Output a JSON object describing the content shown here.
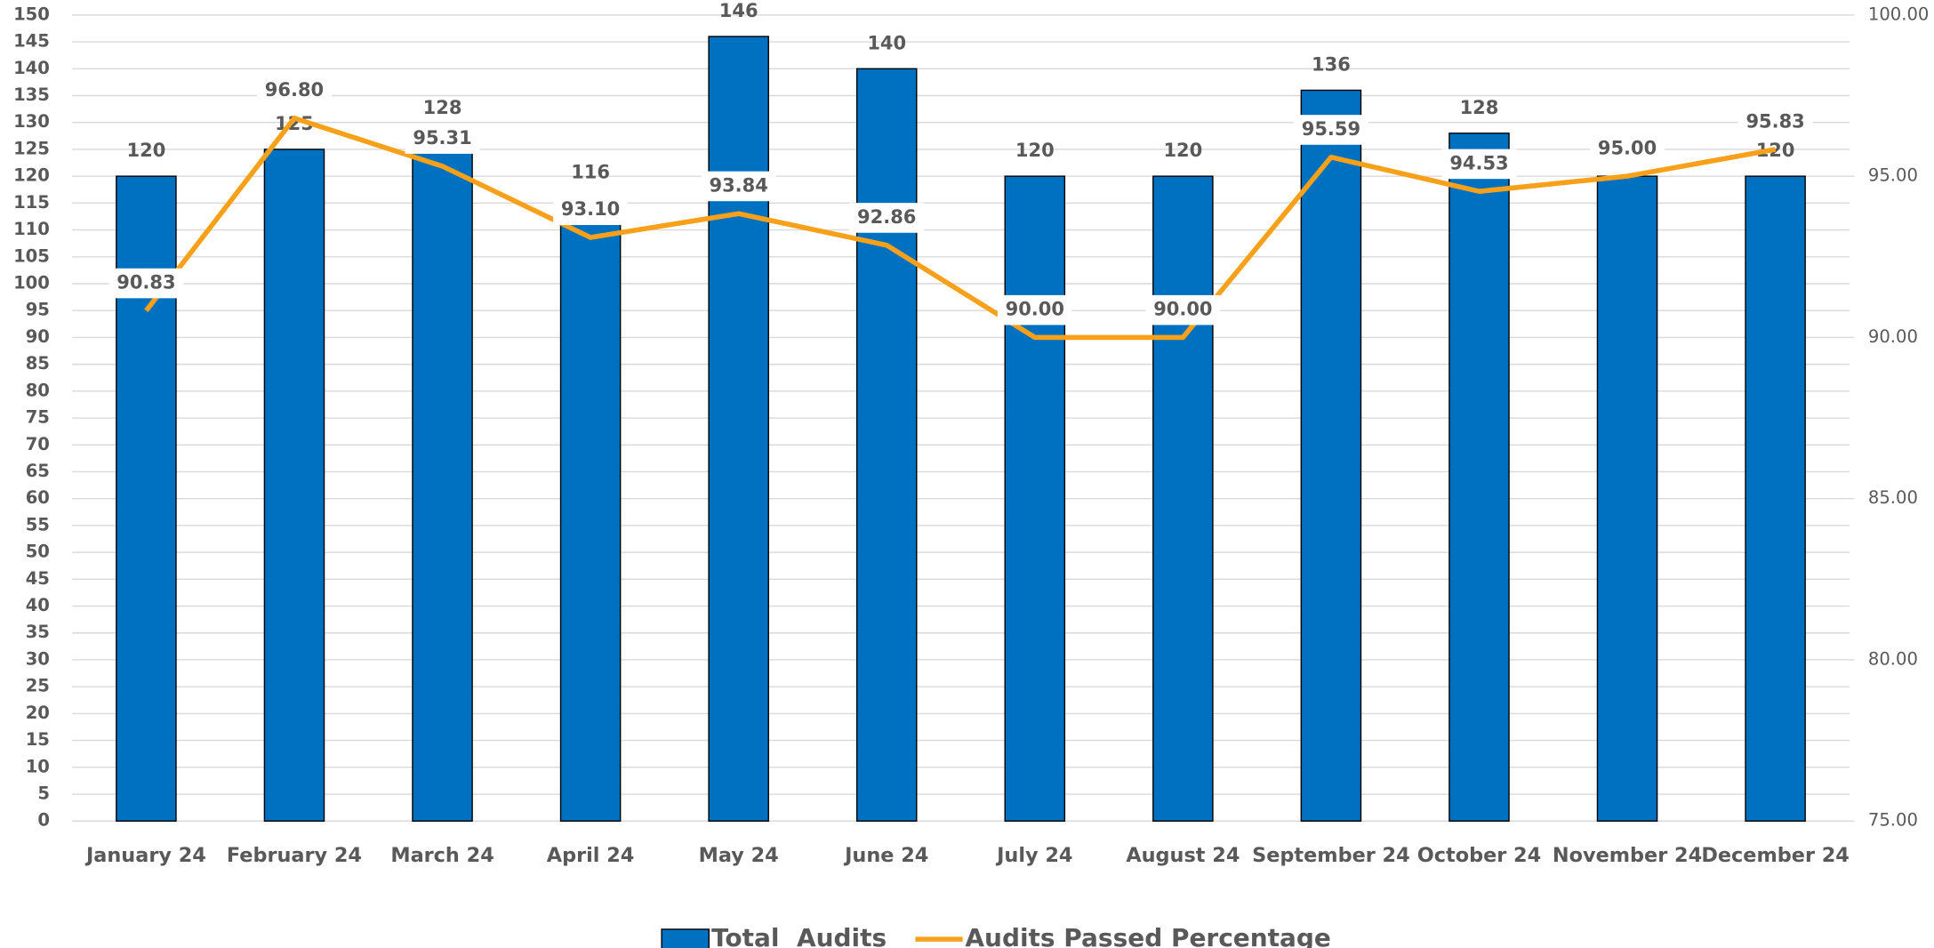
{
  "chart_data": {
    "type": "bar_line",
    "categories": [
      "January 24",
      "February 24",
      "March 24",
      "April 24",
      "May 24",
      "June 24",
      "July 24",
      "August 24",
      "September 24",
      "October 24",
      "November 24",
      "December 24"
    ],
    "series": [
      {
        "name": "Total  Audits",
        "type": "bar",
        "color": "#0070c0",
        "values": [
          120,
          125,
          128,
          116,
          146,
          140,
          120,
          120,
          136,
          128,
          120,
          120
        ]
      },
      {
        "name": "Audits Passed Percentage",
        "type": "line",
        "axis": "y2",
        "color": "#f7a11a",
        "values": [
          90.83,
          96.8,
          95.31,
          93.1,
          93.84,
          92.86,
          90,
          90,
          95.59,
          94.53,
          95,
          95.83
        ],
        "value_labels": [
          "90.83",
          "96.80",
          "95.31",
          "93.10",
          "93.84",
          "92.86",
          "90.00",
          "90.00",
          "95.59",
          "94.53",
          "95.00",
          "95.83"
        ]
      }
    ],
    "ylim": [
      0,
      150
    ],
    "yticks": [
      0,
      5,
      10,
      15,
      20,
      25,
      30,
      35,
      40,
      45,
      50,
      55,
      60,
      65,
      70,
      75,
      80,
      85,
      90,
      95,
      100,
      105,
      110,
      115,
      120,
      125,
      130,
      135,
      140,
      145,
      150
    ],
    "y2lim": [
      75,
      100
    ],
    "y2ticks": [
      {
        "value": 75,
        "label": "75.00"
      },
      {
        "value": 80,
        "label": "80.00"
      },
      {
        "value": 85,
        "label": "85.00"
      },
      {
        "value": 90,
        "label": "90.00"
      },
      {
        "value": 95,
        "label": "95.00"
      },
      {
        "value": 100,
        "label": "100.00"
      }
    ],
    "grid": true,
    "legend": "bottom"
  }
}
